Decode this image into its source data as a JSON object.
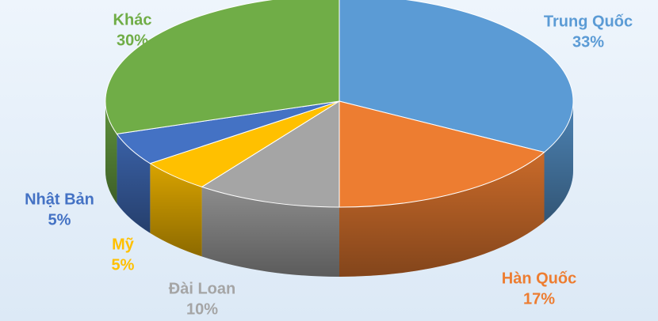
{
  "chart_data": {
    "type": "pie",
    "categories": [
      "Trung Quốc",
      "Hàn Quốc",
      "Đài Loan",
      "Mỹ",
      "Nhật Bản",
      "Khác"
    ],
    "values": [
      33,
      17,
      10,
      5,
      5,
      30
    ],
    "value_labels": [
      "33%",
      "17%",
      "10%",
      "5%",
      "5%",
      "30%"
    ],
    "colors": [
      "#5b9bd5",
      "#ed7d31",
      "#a5a5a5",
      "#ffc000",
      "#4472c4",
      "#70ad47"
    ]
  }
}
